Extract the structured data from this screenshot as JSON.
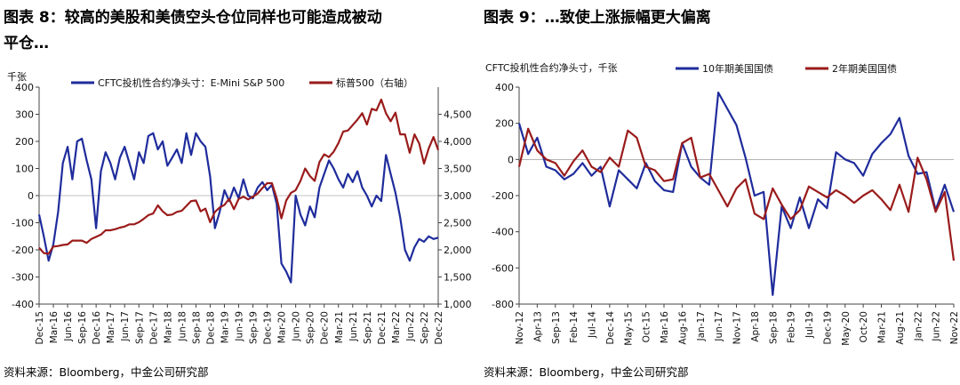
{
  "panels": [
    {
      "title_line1": "图表 8：较高的美股和美债空头仓位同样也可能造成被动",
      "title_line2": "平仓…",
      "source": "资料来源：Bloomberg，中金公司研究部"
    },
    {
      "title_line1": "图表 9：…致使上涨振幅更大偏离",
      "title_line2": "",
      "source": "资料来源：Bloomberg，中金公司研究部"
    }
  ],
  "chart_data": [
    {
      "type": "line",
      "unit_label": "千张",
      "x_ticks": [
        "Dec-15",
        "Mar-16",
        "Jun-16",
        "Sep-16",
        "Dec-16",
        "Mar-17",
        "Jun-17",
        "Sep-17",
        "Dec-17",
        "Mar-18",
        "Jun-18",
        "Sep-18",
        "Dec-18",
        "Mar-19",
        "Jun-19",
        "Sep-19",
        "Dec-19",
        "Mar-20",
        "Jun-20",
        "Sep-20",
        "Dec-20",
        "Mar-21",
        "Jun-21",
        "Sep-21",
        "Dec-21",
        "Mar-22",
        "Jun-22",
        "Sep-22",
        "Dec-22"
      ],
      "y_left": {
        "min": -400,
        "max": 400,
        "ticks": [
          -400,
          -300,
          -200,
          -100,
          0,
          100,
          200,
          300,
          400
        ]
      },
      "y_right": {
        "min": 1000,
        "max": 5000,
        "ticks": [
          "1,000",
          "1,500",
          "2,000",
          "2,500",
          "3,000",
          "3,500",
          "4,000",
          "4,500"
        ],
        "tick_values": [
          1000,
          1500,
          2000,
          2500,
          3000,
          3500,
          4000,
          4500
        ]
      },
      "legend": [
        "CFTC投机性合约净头寸：E-Mini S&P 500",
        "标普500（右轴）"
      ],
      "legend_position": "top",
      "series": [
        {
          "name": "CFTC投机性合约净头寸：E-Mini S&P 500",
          "axis": "left",
          "color": "#1f2c9c",
          "x": [
            "Dec-15",
            "Jan-16",
            "Feb-16",
            "Mar-16",
            "Apr-16",
            "May-16",
            "Jun-16",
            "Jul-16",
            "Aug-16",
            "Sep-16",
            "Oct-16",
            "Nov-16",
            "Dec-16",
            "Jan-17",
            "Feb-17",
            "Mar-17",
            "Apr-17",
            "May-17",
            "Jun-17",
            "Jul-17",
            "Aug-17",
            "Sep-17",
            "Oct-17",
            "Nov-17",
            "Dec-17",
            "Jan-18",
            "Feb-18",
            "Mar-18",
            "Apr-18",
            "May-18",
            "Jun-18",
            "Jul-18",
            "Aug-18",
            "Sep-18",
            "Oct-18",
            "Nov-18",
            "Dec-18",
            "Jan-19",
            "Feb-19",
            "Mar-19",
            "Apr-19",
            "May-19",
            "Jun-19",
            "Jul-19",
            "Aug-19",
            "Sep-19",
            "Oct-19",
            "Nov-19",
            "Dec-19",
            "Jan-20",
            "Feb-20",
            "Mar-20",
            "Apr-20",
            "May-20",
            "Jun-20",
            "Jul-20",
            "Aug-20",
            "Sep-20",
            "Oct-20",
            "Nov-20",
            "Dec-20",
            "Jan-21",
            "Feb-21",
            "Mar-21",
            "Apr-21",
            "May-21",
            "Jun-21",
            "Jul-21",
            "Aug-21",
            "Sep-21",
            "Oct-21",
            "Nov-21",
            "Dec-21",
            "Jan-22",
            "Feb-22",
            "Mar-22",
            "Apr-22",
            "May-22",
            "Jun-22",
            "Jul-22",
            "Aug-22",
            "Sep-22",
            "Oct-22",
            "Nov-22",
            "Dec-22"
          ],
          "values": [
            -70,
            -150,
            -240,
            -180,
            -60,
            120,
            180,
            60,
            200,
            210,
            130,
            60,
            -120,
            90,
            160,
            120,
            60,
            140,
            180,
            120,
            60,
            160,
            120,
            220,
            230,
            170,
            200,
            110,
            140,
            170,
            120,
            230,
            150,
            230,
            200,
            180,
            70,
            -120,
            -60,
            20,
            -20,
            30,
            -10,
            60,
            0,
            -10,
            30,
            50,
            20,
            40,
            -30,
            -250,
            -280,
            -320,
            0,
            -70,
            -110,
            -40,
            -80,
            30,
            80,
            130,
            100,
            60,
            30,
            80,
            50,
            90,
            30,
            0,
            -40,
            0,
            -20,
            150,
            80,
            10,
            -80,
            -200,
            -240,
            -190,
            -160,
            -170,
            -150,
            -160,
            -155
          ]
        },
        {
          "name": "标普500（右轴）",
          "axis": "right",
          "color": "#9a1b1b",
          "x": [
            "Dec-15",
            "Jan-16",
            "Feb-16",
            "Mar-16",
            "Apr-16",
            "May-16",
            "Jun-16",
            "Jul-16",
            "Aug-16",
            "Sep-16",
            "Oct-16",
            "Nov-16",
            "Dec-16",
            "Jan-17",
            "Feb-17",
            "Mar-17",
            "Apr-17",
            "May-17",
            "Jun-17",
            "Jul-17",
            "Aug-17",
            "Sep-17",
            "Oct-17",
            "Nov-17",
            "Dec-17",
            "Jan-18",
            "Feb-18",
            "Mar-18",
            "Apr-18",
            "May-18",
            "Jun-18",
            "Jul-18",
            "Aug-18",
            "Sep-18",
            "Oct-18",
            "Nov-18",
            "Dec-18",
            "Jan-19",
            "Feb-19",
            "Mar-19",
            "Apr-19",
            "May-19",
            "Jun-19",
            "Jul-19",
            "Aug-19",
            "Sep-19",
            "Oct-19",
            "Nov-19",
            "Dec-19",
            "Jan-20",
            "Feb-20",
            "Mar-20",
            "Apr-20",
            "May-20",
            "Jun-20",
            "Jul-20",
            "Aug-20",
            "Sep-20",
            "Oct-20",
            "Nov-20",
            "Dec-20",
            "Jan-21",
            "Feb-21",
            "Mar-21",
            "Apr-21",
            "May-21",
            "Jun-21",
            "Jul-21",
            "Aug-21",
            "Sep-21",
            "Oct-21",
            "Nov-21",
            "Dec-21",
            "Jan-22",
            "Feb-22",
            "Mar-22",
            "Apr-22",
            "May-22",
            "Jun-22",
            "Jul-22",
            "Aug-22",
            "Sep-22",
            "Oct-22",
            "Nov-22",
            "Dec-22"
          ],
          "values": [
            2040,
            1940,
            1930,
            2060,
            2070,
            2090,
            2100,
            2170,
            2170,
            2170,
            2130,
            2200,
            2240,
            2280,
            2360,
            2360,
            2380,
            2410,
            2430,
            2470,
            2470,
            2510,
            2570,
            2640,
            2670,
            2820,
            2710,
            2640,
            2650,
            2700,
            2720,
            2810,
            2900,
            2910,
            2710,
            2760,
            2510,
            2700,
            2780,
            2830,
            2940,
            2750,
            2940,
            2980,
            2930,
            2980,
            3040,
            3140,
            3230,
            3230,
            2950,
            2580,
            2910,
            3050,
            3100,
            3270,
            3500,
            3360,
            3270,
            3620,
            3760,
            3710,
            3810,
            3970,
            4180,
            4200,
            4300,
            4400,
            4520,
            4310,
            4600,
            4570,
            4770,
            4520,
            4370,
            4530,
            4130,
            4130,
            3790,
            4130,
            3960,
            3590,
            3870,
            4080,
            3840
          ]
        }
      ]
    },
    {
      "type": "line",
      "unit_label": "CFTC投机性合约净头寸，千张",
      "x_ticks": [
        "Nov-12",
        "Apr-13",
        "Sep-13",
        "Feb-14",
        "Jul-14",
        "Dec-14",
        "May-15",
        "Oct-15",
        "Mar-16",
        "Aug-16",
        "Jan-17",
        "Jun-17",
        "Nov-17",
        "Apr-18",
        "Sep-18",
        "Feb-19",
        "Jul-19",
        "Dec-19",
        "May-20",
        "Oct-20",
        "Mar-21",
        "Aug-21",
        "Jan-22",
        "Jun-22",
        "Nov-22"
      ],
      "y_left": {
        "min": -800,
        "max": 400,
        "ticks": [
          -800,
          -600,
          -400,
          -200,
          0,
          200,
          400
        ]
      },
      "legend": [
        "10年期美国国债",
        "2年期美国国债"
      ],
      "legend_position": "top",
      "series": [
        {
          "name": "10年期美国国债",
          "color": "#1f2c9c",
          "x": [
            "Nov-12",
            "Jan-13",
            "Apr-13",
            "Jun-13",
            "Sep-13",
            "Nov-13",
            "Feb-14",
            "Apr-14",
            "Jul-14",
            "Sep-14",
            "Dec-14",
            "Feb-15",
            "May-15",
            "Jul-15",
            "Oct-15",
            "Dec-15",
            "Mar-16",
            "May-16",
            "Aug-16",
            "Oct-16",
            "Jan-17",
            "Mar-17",
            "Jun-17",
            "Aug-17",
            "Nov-17",
            "Jan-18",
            "Apr-18",
            "Jun-18",
            "Sep-18",
            "Nov-18",
            "Feb-19",
            "Apr-19",
            "Jul-19",
            "Sep-19",
            "Dec-19",
            "Feb-20",
            "May-20",
            "Jul-20",
            "Oct-20",
            "Dec-20",
            "Mar-21",
            "May-21",
            "Aug-21",
            "Oct-21",
            "Jan-22",
            "Mar-22",
            "Jun-22",
            "Aug-22",
            "Nov-22"
          ],
          "values": [
            200,
            30,
            120,
            -40,
            -60,
            -110,
            -80,
            -20,
            -90,
            -40,
            -260,
            -60,
            -110,
            -160,
            -20,
            -120,
            -170,
            -180,
            90,
            -40,
            -100,
            -140,
            370,
            280,
            190,
            10,
            -200,
            -180,
            -750,
            -260,
            -380,
            -210,
            -380,
            -220,
            -270,
            40,
            0,
            -20,
            -90,
            30,
            90,
            140,
            230,
            20,
            -80,
            -70,
            -280,
            -140,
            -290
          ]
        },
        {
          "name": "2年期美国国债",
          "color": "#9a1b1b",
          "x": [
            "Nov-12",
            "Jan-13",
            "Apr-13",
            "Jun-13",
            "Sep-13",
            "Nov-13",
            "Feb-14",
            "Apr-14",
            "Jul-14",
            "Sep-14",
            "Dec-14",
            "Feb-15",
            "May-15",
            "Jul-15",
            "Oct-15",
            "Dec-15",
            "Mar-16",
            "May-16",
            "Aug-16",
            "Oct-16",
            "Jan-17",
            "Mar-17",
            "Jun-17",
            "Aug-17",
            "Nov-17",
            "Jan-18",
            "Apr-18",
            "Jun-18",
            "Sep-18",
            "Nov-18",
            "Feb-19",
            "Apr-19",
            "Jul-19",
            "Sep-19",
            "Dec-19",
            "Feb-20",
            "May-20",
            "Jul-20",
            "Oct-20",
            "Dec-20",
            "Mar-21",
            "May-21",
            "Aug-21",
            "Oct-21",
            "Jan-22",
            "Mar-22",
            "Jun-22",
            "Aug-22",
            "Nov-22"
          ],
          "values": [
            -40,
            170,
            50,
            0,
            -20,
            -90,
            -10,
            50,
            -40,
            -70,
            10,
            -40,
            160,
            120,
            -40,
            -60,
            -120,
            -110,
            90,
            120,
            -100,
            -80,
            -170,
            -260,
            -160,
            -110,
            -300,
            -330,
            -160,
            -250,
            -330,
            -280,
            -150,
            -180,
            -210,
            -170,
            -200,
            -240,
            -200,
            -170,
            -220,
            -280,
            -140,
            -290,
            10,
            -110,
            -290,
            -180,
            -560
          ]
        }
      ]
    }
  ]
}
